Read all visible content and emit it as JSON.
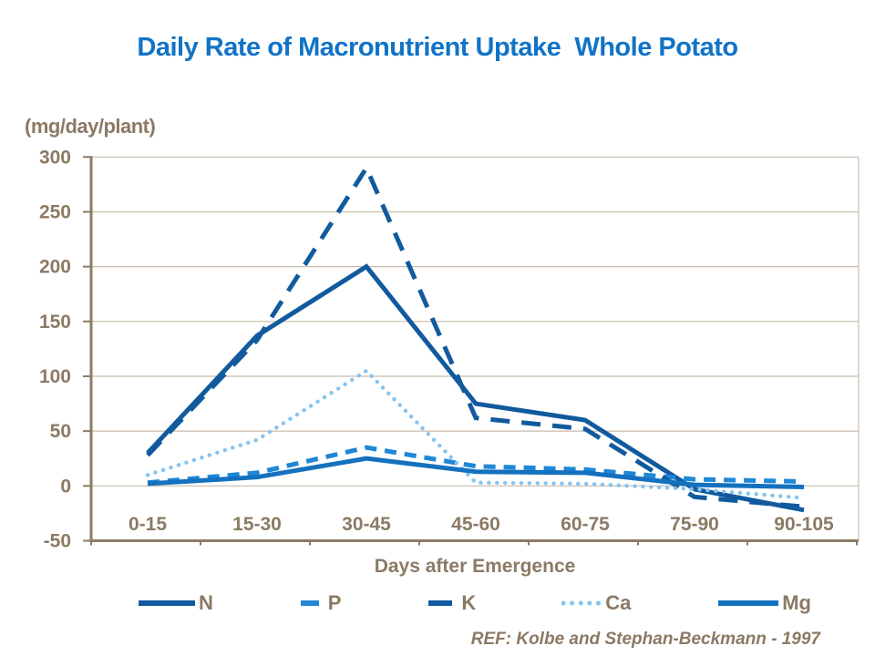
{
  "page": {
    "ref": "REF: Kolbe and Stephan-Beckmann - 1997"
  },
  "chart_data": {
    "type": "line",
    "title": "Daily Rate of Macronutrient Uptake  Whole Potato",
    "unit_label": "(mg/day/plant)",
    "xlabel": "Days after Emergence",
    "categories": [
      "0-15",
      "15-30",
      "30-45",
      "45-60",
      "60-75",
      "75-90",
      "90-105"
    ],
    "yticks": [
      300,
      250,
      200,
      150,
      100,
      50,
      0,
      -50
    ],
    "ylim": [
      -50,
      300
    ],
    "grid": true,
    "legend_position": "bottom",
    "series": [
      {
        "name": "N",
        "color": "#115A9E",
        "style": "solid",
        "values": [
          30,
          137,
          200,
          75,
          60,
          -3,
          -22
        ]
      },
      {
        "name": "P",
        "color": "#1E87D6",
        "style": "dashed",
        "values": [
          3,
          12,
          35,
          18,
          15,
          6,
          4
        ]
      },
      {
        "name": "K",
        "color": "#115A9E",
        "style": "long-dash",
        "values": [
          28,
          133,
          290,
          62,
          52,
          -10,
          -19
        ]
      },
      {
        "name": "Ca",
        "color": "#85C4F0",
        "style": "dotted",
        "values": [
          10,
          42,
          105,
          3,
          2,
          -3,
          -11
        ]
      },
      {
        "name": "Mg",
        "color": "#1471BE",
        "style": "solid",
        "values": [
          2,
          8,
          25,
          13,
          12,
          1,
          -1
        ]
      }
    ],
    "colors": {
      "title_blue": "#1173C6",
      "label_brown": "#8B7A64",
      "gridline_tan": "#C9BCAC",
      "axis_brown": "#8C7B66"
    }
  }
}
